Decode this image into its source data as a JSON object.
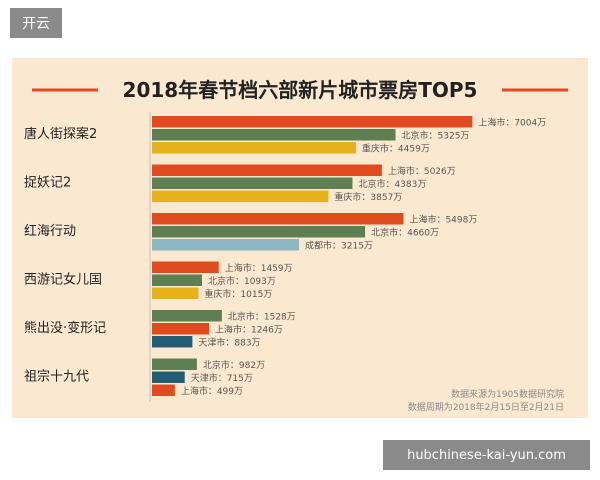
{
  "header": {
    "tag_label": "开云"
  },
  "footer": {
    "link_text": "hubchinese-kai-yun.com"
  },
  "chart_data": {
    "type": "bar",
    "orientation": "horizontal",
    "title": "2018年春节档六部新片城市票房TOP5",
    "value_unit": "万",
    "xlim": [
      0,
      7500
    ],
    "grid": false,
    "colors": {
      "上海市": "#e04a1f",
      "北京市": "#5f7f52",
      "重庆市": "#e7b11c",
      "成都市": "#8fb7c0",
      "天津市": "#245d73"
    },
    "groups": [
      {
        "film": "唐人街探案2",
        "bars": [
          {
            "city": "上海市",
            "value": 7004
          },
          {
            "city": "北京市",
            "value": 5325
          },
          {
            "city": "重庆市",
            "value": 4459
          }
        ]
      },
      {
        "film": "捉妖记2",
        "bars": [
          {
            "city": "上海市",
            "value": 5026
          },
          {
            "city": "北京市",
            "value": 4383
          },
          {
            "city": "重庆市",
            "value": 3857
          }
        ]
      },
      {
        "film": "红海行动",
        "bars": [
          {
            "city": "上海市",
            "value": 5498
          },
          {
            "city": "北京市",
            "value": 4660
          },
          {
            "city": "成都市",
            "value": 3215
          }
        ]
      },
      {
        "film": "西游记女儿国",
        "bars": [
          {
            "city": "上海市",
            "value": 1459
          },
          {
            "city": "北京市",
            "value": 1093
          },
          {
            "city": "重庆市",
            "value": 1015
          }
        ]
      },
      {
        "film": "熊出没·变形记",
        "bars": [
          {
            "city": "北京市",
            "value": 1528
          },
          {
            "city": "上海市",
            "value": 1246
          },
          {
            "city": "天津市",
            "value": 883
          }
        ]
      },
      {
        "film": "祖宗十九代",
        "bars": [
          {
            "city": "北京市",
            "value": 982
          },
          {
            "city": "天津市",
            "value": 715
          },
          {
            "city": "上海市",
            "value": 499
          }
        ]
      }
    ],
    "source_note": "数据来源为1905数据研究院",
    "period_note": "数据周期为2018年2月15日至2月21日"
  }
}
